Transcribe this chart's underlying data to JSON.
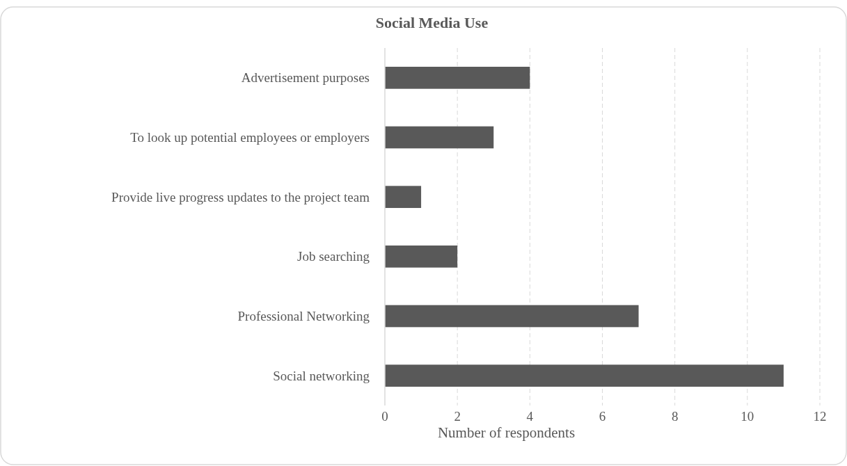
{
  "chart_data": {
    "type": "bar",
    "orientation": "horizontal",
    "title": "Social Media Use",
    "xlabel": "Number of respondents",
    "categories": [
      "Advertisement purposes",
      "To look up potential employees or employers",
      "Provide live progress updates to the project team",
      "Job searching",
      "Professional Networking",
      "Social networking"
    ],
    "values": [
      4,
      3,
      1,
      2,
      7,
      11
    ],
    "color": "#595959",
    "xlim": [
      0,
      12
    ],
    "xticks": [
      0,
      2,
      4,
      6,
      8,
      10,
      12
    ],
    "grid": "x"
  }
}
